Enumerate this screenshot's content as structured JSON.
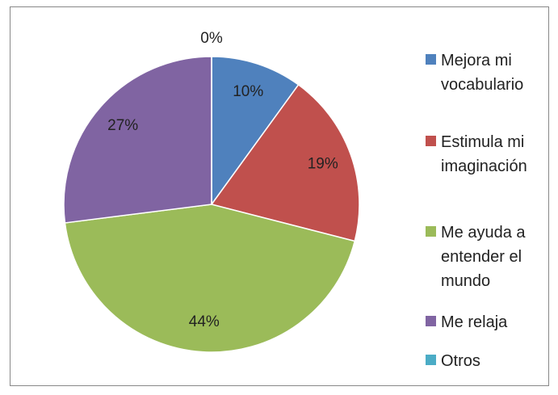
{
  "chart_data": {
    "type": "pie",
    "categories": [
      "Mejora mi vocabulario",
      "Estimula mi imaginación",
      "Me ayuda a entender el mundo",
      "Me relaja",
      "Otros"
    ],
    "values": [
      10,
      19,
      44,
      27,
      0
    ],
    "value_labels": [
      "10%",
      "19%",
      "44%",
      "27%",
      "0%"
    ],
    "colors": [
      "#4f81bd",
      "#c0504d",
      "#9bbb59",
      "#8064a2",
      "#4bacc6"
    ],
    "legend": "right"
  }
}
